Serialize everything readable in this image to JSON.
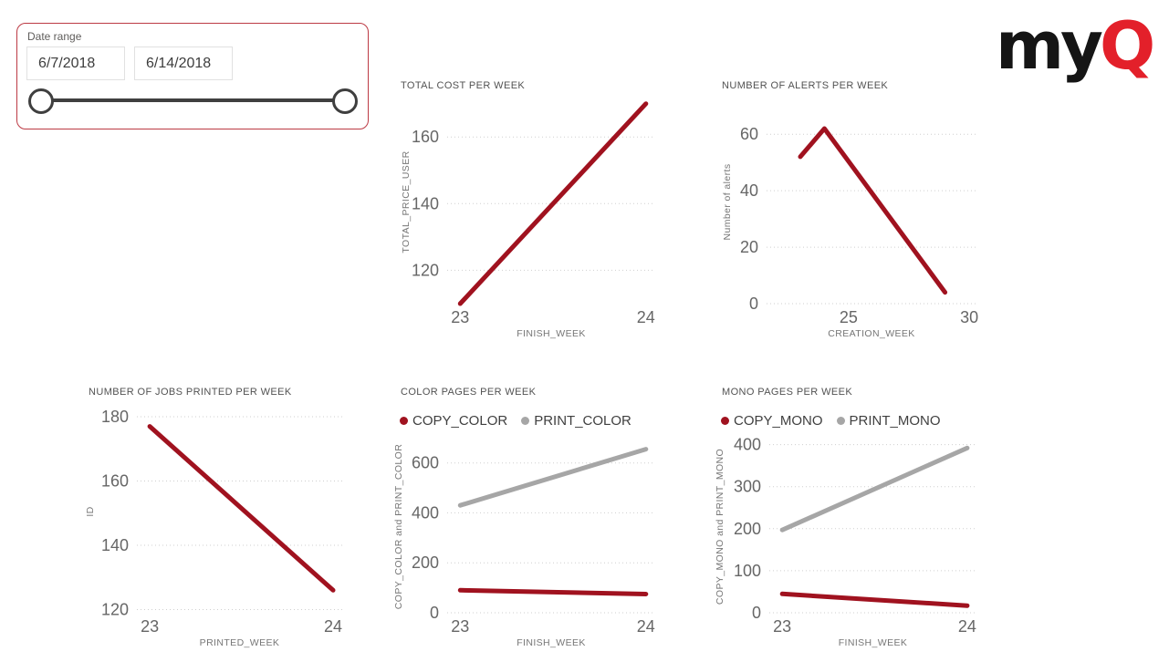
{
  "logo": {
    "black": "my",
    "red": "Q",
    "red_color": "#e3202a"
  },
  "slicer": {
    "label": "Date range",
    "start_date": "6/7/2018",
    "end_date": "6/14/2018",
    "border_color": "#bc3a44"
  },
  "colors": {
    "line_red": "#a0121f",
    "line_gray": "#a6a6a6",
    "grid": "#cfcfcf",
    "tick_text": "#666666",
    "title_text": "#525252"
  },
  "chart_data": [
    {
      "type": "line",
      "title": "TOTAL COST PER WEEK",
      "xlabel": "FINISH_WEEK",
      "ylabel": "TOTAL_PRICE_USER",
      "xticks": [
        23,
        24
      ],
      "yticks": [
        120,
        140,
        160
      ],
      "xlim": [
        22.93,
        24.05
      ],
      "ylim": [
        110,
        171
      ],
      "grid": "dotted-horizontal",
      "legend": false,
      "series": [
        {
          "name": "TOTAL_PRICE_USER",
          "color": "#a0121f",
          "x": [
            23,
            24
          ],
          "y": [
            110,
            170
          ]
        }
      ]
    },
    {
      "type": "line",
      "title": "NUMBER OF ALERTS PER WEEK",
      "xlabel": "CREATION_WEEK",
      "ylabel": "Number of alerts",
      "xticks": [
        25,
        30
      ],
      "yticks": [
        0,
        20,
        40,
        60
      ],
      "xlim": [
        21.6,
        30.3
      ],
      "ylim": [
        0,
        72
      ],
      "grid": "dotted-horizontal",
      "legend": false,
      "series": [
        {
          "name": "Number of alerts",
          "color": "#a0121f",
          "x": [
            23,
            24,
            29
          ],
          "y": [
            52,
            62,
            4
          ]
        }
      ]
    },
    {
      "type": "line",
      "title": "NUMBER OF JOBS PRINTED PER WEEK",
      "xlabel": "PRINTED_WEEK",
      "ylabel": "ID",
      "xticks": [
        23,
        24
      ],
      "yticks": [
        120,
        140,
        160,
        180
      ],
      "xlim": [
        22.93,
        24.05
      ],
      "ylim": [
        119,
        182
      ],
      "grid": "dotted-horizontal",
      "legend": false,
      "series": [
        {
          "name": "ID",
          "color": "#a0121f",
          "x": [
            23,
            24
          ],
          "y": [
            177,
            126
          ]
        }
      ]
    },
    {
      "type": "line",
      "title": "COLOR PAGES PER WEEK",
      "xlabel": "FINISH_WEEK",
      "ylabel": "COPY_COLOR and PRINT_COLOR",
      "xticks": [
        23,
        24
      ],
      "yticks": [
        0,
        200,
        400,
        600
      ],
      "xlim": [
        22.93,
        24.05
      ],
      "ylim": [
        0,
        690
      ],
      "grid": "dotted-horizontal",
      "legend": true,
      "series": [
        {
          "name": "COPY_COLOR",
          "color": "#a0121f",
          "x": [
            23,
            24
          ],
          "y": [
            90,
            75
          ]
        },
        {
          "name": "PRINT_COLOR",
          "color": "#a6a6a6",
          "x": [
            23,
            24
          ],
          "y": [
            430,
            655
          ]
        }
      ]
    },
    {
      "type": "line",
      "title": "MONO PAGES PER WEEK",
      "xlabel": "FINISH_WEEK",
      "ylabel": "COPY_MONO and PRINT_MONO",
      "xticks": [
        23,
        24
      ],
      "yticks": [
        0,
        100,
        200,
        300,
        400
      ],
      "xlim": [
        22.93,
        24.05
      ],
      "ylim": [
        0,
        410
      ],
      "grid": "dotted-horizontal",
      "legend": true,
      "series": [
        {
          "name": "COPY_MONO",
          "color": "#a0121f",
          "x": [
            23,
            24
          ],
          "y": [
            45,
            17
          ]
        },
        {
          "name": "PRINT_MONO",
          "color": "#a6a6a6",
          "x": [
            23,
            24
          ],
          "y": [
            197,
            392
          ]
        }
      ]
    }
  ]
}
